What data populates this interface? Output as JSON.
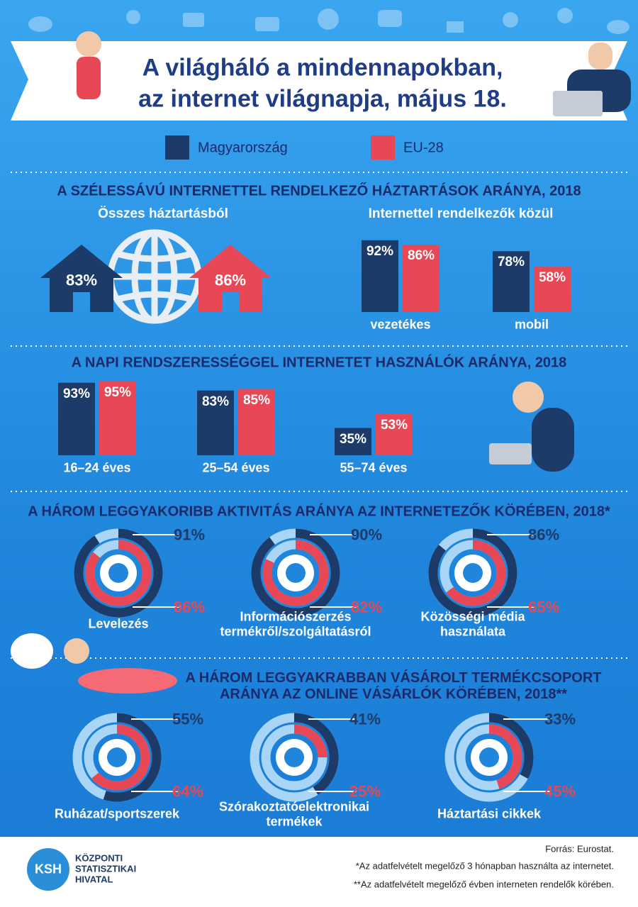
{
  "header": {
    "title": [
      "A világháló a mindennapokban,",
      "az internet világnapja, május 18."
    ]
  },
  "legend": {
    "items": [
      {
        "name": "Magyarország",
        "color": "#1d3b69"
      },
      {
        "name": "EU-28",
        "color": "#e84855"
      }
    ]
  },
  "chart_data": [
    {
      "type": "house",
      "title": "A SZÉLESSÁVÚ INTERNETTEL RENDELKEZŐ HÁZTARTÁSOK ARÁNYA, 2018",
      "subtitle": "Összes háztartásból",
      "series": [
        {
          "name": "Magyarország",
          "values": [
            83
          ],
          "value_labels": [
            "83%"
          ]
        },
        {
          "name": "EU-28",
          "values": [
            86
          ],
          "value_labels": [
            "86%"
          ]
        }
      ]
    },
    {
      "type": "bar",
      "subtitle": "Internettel rendelkezők közül",
      "categories": [
        "vezetékes",
        "mobil"
      ],
      "ylim": [
        0,
        100
      ],
      "series": [
        {
          "name": "Magyarország",
          "values": [
            92,
            78
          ],
          "value_labels": [
            "92%",
            "78%"
          ]
        },
        {
          "name": "EU-28",
          "values": [
            86,
            58
          ],
          "value_labels": [
            "86%",
            "58%"
          ]
        }
      ]
    },
    {
      "type": "bar",
      "title": "A NAPI RENDSZERESSÉGGEL INTERNETET HASZNÁLÓK ARÁNYA, 2018",
      "categories": [
        "16–24 éves",
        "25–54 éves",
        "55–74 éves"
      ],
      "ylim": [
        0,
        100
      ],
      "series": [
        {
          "name": "Magyarország",
          "values": [
            93,
            83,
            35
          ],
          "value_labels": [
            "93%",
            "83%",
            "35%"
          ]
        },
        {
          "name": "EU-28",
          "values": [
            95,
            85,
            53
          ],
          "value_labels": [
            "95%",
            "85%",
            "53%"
          ]
        }
      ]
    },
    {
      "type": "donut",
      "title": "A HÁROM LEGGYAKORIBB AKTIVITÁS ARÁNYA AZ INTERNETEZŐK KÖRÉBEN, 2018*",
      "categories": [
        "Levelezés",
        "Információszerzés termékről/szolgáltatásról",
        "Közösségi média használata"
      ],
      "series": [
        {
          "name": "Magyarország",
          "values": [
            91,
            90,
            86
          ],
          "value_labels": [
            "91%",
            "90%",
            "86%"
          ]
        },
        {
          "name": "EU-28",
          "values": [
            86,
            82,
            65
          ],
          "value_labels": [
            "86%",
            "82%",
            "65%"
          ]
        }
      ]
    },
    {
      "type": "donut",
      "title": "A HÁROM LEGGYAKRABBAN VÁSÁROLT TERMÉKCSOPORT ARÁNYA AZ ONLINE VÁSÁRLÓK KÖRÉBEN, 2018**",
      "categories": [
        "Ruházat/sportszerek",
        "Szórakoztatóelektronikai termékek",
        "Háztartási cikkek"
      ],
      "series": [
        {
          "name": "Magyarország",
          "values": [
            55,
            41,
            33
          ],
          "value_labels": [
            "55%",
            "41%",
            "33%"
          ]
        },
        {
          "name": "EU-28",
          "values": [
            64,
            25,
            45
          ],
          "value_labels": [
            "64%",
            "25%",
            "45%"
          ]
        }
      ]
    }
  ],
  "footer": {
    "source": "Forrás: Eurostat.",
    "note1": "*Az adatfelvételt megelőző 3 hónapban használta az internetet.",
    "note2": "**Az adatfelvételt megelőző évben interneten rendelők körében.",
    "logo": "KSH",
    "organization": "KÖZPONTI STATISZTIKAI HIVATAL"
  }
}
